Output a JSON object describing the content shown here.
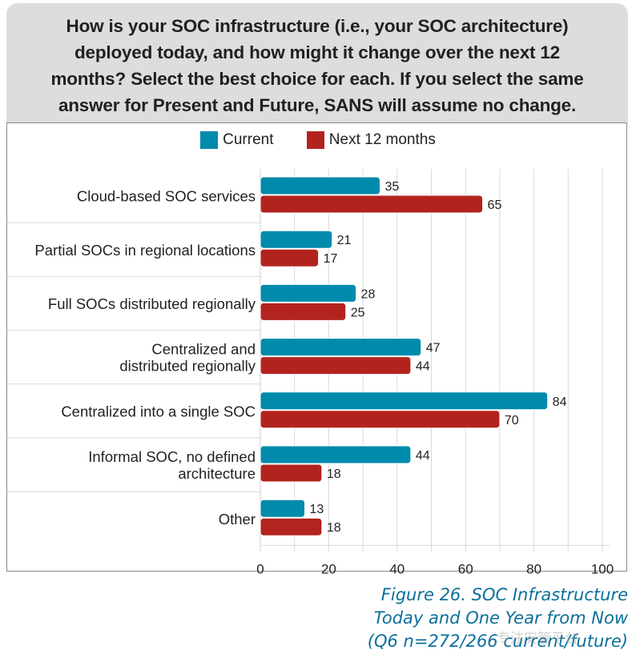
{
  "chart_data": {
    "type": "bar",
    "orientation": "horizontal",
    "title": "How is your SOC infrastructure (i.e., your SOC architecture) deployed today, and how might it change over the next 12 months? Select the best choice for each. If you select the same answer for Present and Future, SANS will assume no change.",
    "title_lines": [
      "How is your SOC infrastructure (i.e., your SOC architecture)",
      "deployed today, and how might it change over the next 12",
      "months? Select the best choice for each. If you select the same",
      "answer for Present and Future, SANS will assume no change."
    ],
    "categories": [
      [
        "Cloud-based SOC services"
      ],
      [
        "Partial SOCs in regional locations"
      ],
      [
        "Full SOCs distributed regionally"
      ],
      [
        "Centralized and",
        "distributed regionally"
      ],
      [
        "Centralized into a single SOC"
      ],
      [
        "Informal SOC, no defined",
        "architecture"
      ],
      [
        "Other"
      ]
    ],
    "series": [
      {
        "name": "Current",
        "color": "#008aab",
        "values": [
          35,
          21,
          28,
          47,
          84,
          44,
          13
        ]
      },
      {
        "name": "Next 12 months",
        "color": "#b3231e",
        "values": [
          65,
          17,
          25,
          44,
          70,
          18,
          18
        ]
      }
    ],
    "xlabel": "",
    "ylabel": "",
    "xlim": [
      0,
      100
    ],
    "x_ticks": [
      "0",
      "20",
      "40",
      "60",
      "80",
      "100"
    ],
    "grid": true,
    "legend_position": "top-center"
  },
  "caption": {
    "lines": [
      "Figure 26. SOC Infrastructure",
      "Today and One Year from Now",
      "(Q6 n=272/266 current/future)"
    ]
  },
  "watermark": "专注安管平台"
}
